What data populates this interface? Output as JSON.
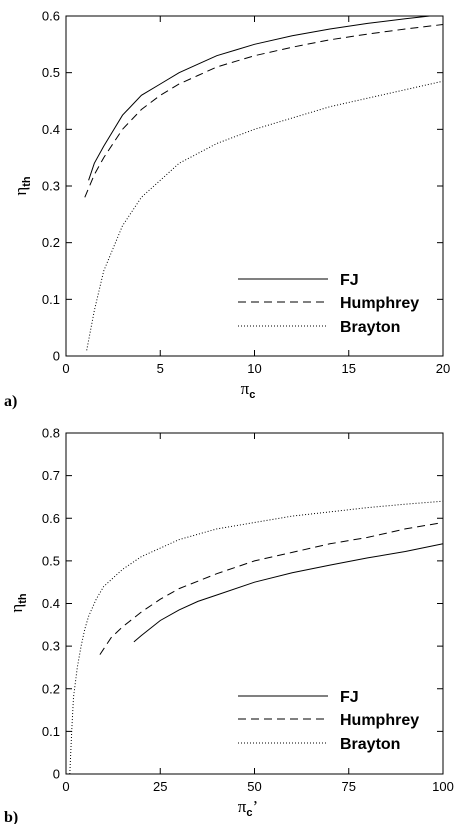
{
  "chart_data": [
    {
      "type": "line",
      "panel_label": "a)",
      "xlabel": "π",
      "xlabel_sub": "c",
      "xlabel_prime": "",
      "ylabel": "η",
      "ylabel_sub": "th",
      "xlim": [
        0,
        20
      ],
      "ylim": [
        0,
        0.6
      ],
      "xticks": [
        0,
        5,
        10,
        15,
        20
      ],
      "xtick_labels": [
        "0",
        "5",
        "10",
        "15",
        "20"
      ],
      "yticks": [
        0,
        0.1,
        0.2,
        0.3,
        0.4,
        0.5,
        0.6
      ],
      "ytick_labels": [
        "0",
        "0.1",
        "0.2",
        "0.3",
        "0.4",
        "0.5",
        "0.6"
      ],
      "grid": false,
      "legend_position": "bottom-right",
      "series": [
        {
          "name": "FJ",
          "style": "solid",
          "x": [
            1.2,
            1.5,
            2,
            3,
            4,
            5,
            6,
            7,
            8,
            9,
            10,
            12,
            14,
            16,
            18,
            19.3
          ],
          "y": [
            0.31,
            0.34,
            0.37,
            0.425,
            0.46,
            0.48,
            0.5,
            0.515,
            0.53,
            0.54,
            0.55,
            0.565,
            0.577,
            0.587,
            0.595,
            0.6
          ]
        },
        {
          "name": "Humphrey",
          "style": "dashed",
          "x": [
            1,
            1.5,
            2,
            3,
            4,
            5,
            6,
            7,
            8,
            9,
            10,
            12,
            14,
            16,
            18,
            20
          ],
          "y": [
            0.28,
            0.32,
            0.35,
            0.4,
            0.435,
            0.46,
            0.48,
            0.495,
            0.51,
            0.52,
            0.53,
            0.545,
            0.558,
            0.568,
            0.577,
            0.585
          ]
        },
        {
          "name": "Brayton",
          "style": "dotted",
          "x": [
            1.1,
            1.5,
            2,
            3,
            4,
            5,
            6,
            8,
            10,
            12,
            14,
            16,
            18,
            20
          ],
          "y": [
            0.01,
            0.08,
            0.15,
            0.23,
            0.28,
            0.31,
            0.34,
            0.375,
            0.4,
            0.42,
            0.44,
            0.455,
            0.47,
            0.485
          ]
        }
      ]
    },
    {
      "type": "line",
      "panel_label": "b)",
      "xlabel": "π",
      "xlabel_sub": "c",
      "xlabel_prime": "’",
      "ylabel": "η",
      "ylabel_sub": "th",
      "xlim": [
        0,
        100
      ],
      "ylim": [
        0,
        0.8
      ],
      "xticks": [
        0,
        25,
        50,
        75,
        100
      ],
      "xtick_labels": [
        "0",
        "25",
        "50",
        "75",
        "100"
      ],
      "yticks": [
        0,
        0.1,
        0.2,
        0.3,
        0.4,
        0.5,
        0.6,
        0.7,
        0.8
      ],
      "ytick_labels": [
        "0",
        "0.1",
        "0.2",
        "0.3",
        "0.4",
        "0.5",
        "0.6",
        "0.7",
        "0.8"
      ],
      "grid": false,
      "legend_position": "bottom-right",
      "series": [
        {
          "name": "FJ",
          "style": "solid",
          "x": [
            18,
            20,
            25,
            30,
            35,
            40,
            50,
            60,
            70,
            80,
            90,
            100
          ],
          "y": [
            0.31,
            0.325,
            0.36,
            0.385,
            0.405,
            0.42,
            0.45,
            0.472,
            0.49,
            0.507,
            0.522,
            0.54
          ]
        },
        {
          "name": "Humphrey",
          "style": "dashed",
          "x": [
            9,
            12,
            15,
            20,
            25,
            30,
            40,
            50,
            60,
            70,
            80,
            90,
            100
          ],
          "y": [
            0.28,
            0.32,
            0.345,
            0.38,
            0.41,
            0.435,
            0.47,
            0.5,
            0.52,
            0.54,
            0.555,
            0.575,
            0.59
          ]
        },
        {
          "name": "Brayton",
          "style": "dotted",
          "x": [
            1,
            1.5,
            2,
            3,
            4,
            5,
            6,
            8,
            10,
            15,
            20,
            25,
            30,
            40,
            50,
            60,
            70,
            80,
            90,
            100
          ],
          "y": [
            0.0,
            0.1,
            0.18,
            0.25,
            0.3,
            0.34,
            0.37,
            0.41,
            0.44,
            0.48,
            0.51,
            0.53,
            0.55,
            0.575,
            0.59,
            0.605,
            0.615,
            0.625,
            0.633,
            0.64
          ]
        }
      ]
    }
  ]
}
